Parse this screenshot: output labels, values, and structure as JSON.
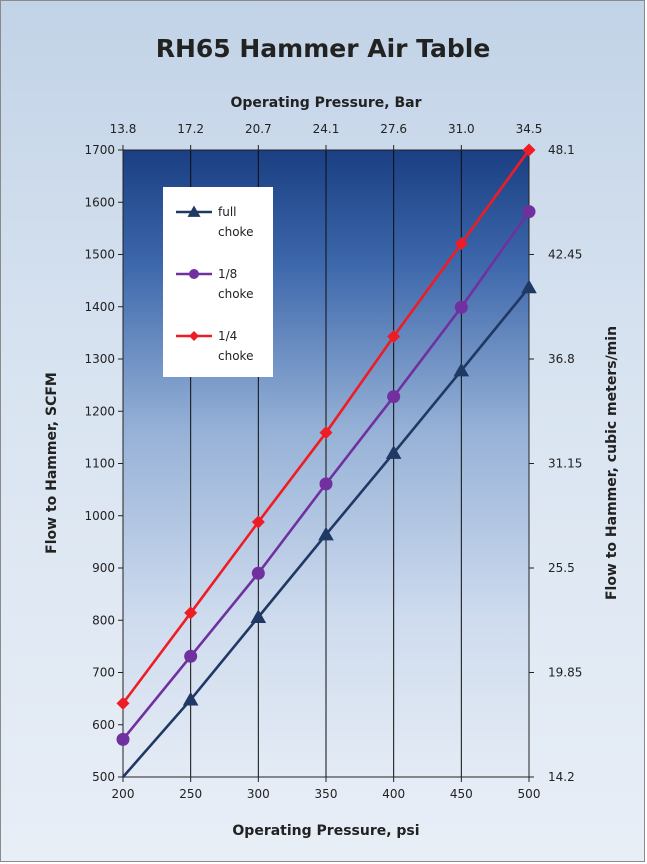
{
  "chart_data": {
    "type": "line",
    "title": "RH65 Hammer Air Table",
    "xlabel": "Operating Pressure, psi",
    "x2label": "Operating Pressure, Bar",
    "ylabel": "Flow to Hammer, SCFM",
    "y2label": "Flow to Hammer, cubic meters/min",
    "xlim": [
      200,
      500
    ],
    "ylim": [
      500,
      1700
    ],
    "x_ticks": [
      200,
      250,
      300,
      350,
      400,
      450,
      500
    ],
    "y_ticks": [
      500,
      600,
      700,
      800,
      900,
      1000,
      1100,
      1200,
      1300,
      1400,
      1500,
      1600,
      1700
    ],
    "x2_ticks": [
      "13.8",
      "17.2",
      "20.7",
      "24.1",
      "27.6",
      "31.0",
      "34.5"
    ],
    "y2_ticks": [
      {
        "value": 500,
        "label": "14.2"
      },
      {
        "value": 700,
        "label": "19.85"
      },
      {
        "value": 900,
        "label": "25.5"
      },
      {
        "value": 1100,
        "label": "31.15"
      },
      {
        "value": 1300,
        "label": "36.8"
      },
      {
        "value": 1500,
        "label": "42.45"
      },
      {
        "value": 1700,
        "label": "48.1"
      }
    ],
    "grid": "vertical",
    "legend_position": "top-left",
    "x": [
      200,
      250,
      300,
      350,
      400,
      450,
      500
    ],
    "series": [
      {
        "name": "full choke",
        "color": "#1f3864",
        "marker": "triangle",
        "values": [
          490,
          648,
          806,
          964,
          1120,
          1278,
          1437
        ]
      },
      {
        "name": "1/8 choke",
        "color": "#7030a0",
        "marker": "circle",
        "values": [
          572,
          731,
          890,
          1061,
          1228,
          1399,
          1582
        ]
      },
      {
        "name": "1/4 choke",
        "color": "#ee1c24",
        "marker": "diamond",
        "values": [
          641,
          814,
          988,
          1159,
          1343,
          1521,
          1700
        ]
      }
    ]
  }
}
